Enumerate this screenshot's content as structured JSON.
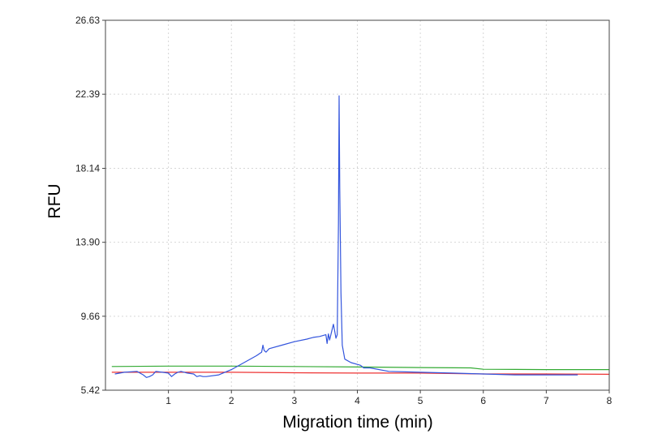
{
  "chart_data": {
    "type": "line",
    "xlabel": "Migration time (min)",
    "ylabel": "RFU",
    "xlim": [
      0,
      8
    ],
    "ylim": [
      5.42,
      26.63
    ],
    "x_ticks": [
      1,
      2,
      3,
      4,
      5,
      6,
      7,
      8
    ],
    "x_tick_labels": [
      "1",
      "2",
      "3",
      "4",
      "5",
      "6",
      "7",
      "8"
    ],
    "y_ticks": [
      5.42,
      9.66,
      13.9,
      18.14,
      22.39,
      26.63
    ],
    "y_tick_labels": [
      "5.42",
      "9.66",
      "13.90",
      "18.14",
      "22.39",
      "26.63"
    ],
    "grid": true,
    "series": [
      {
        "color": "#3355dd",
        "x": [
          0.15,
          0.3,
          0.5,
          0.6,
          0.65,
          0.7,
          0.75,
          0.8,
          0.9,
          1.0,
          1.05,
          1.1,
          1.15,
          1.2,
          1.3,
          1.4,
          1.45,
          1.5,
          1.55,
          1.6,
          1.8,
          2.0,
          2.2,
          2.4,
          2.48,
          2.5,
          2.52,
          2.55,
          2.6,
          2.8,
          3.0,
          3.2,
          3.3,
          3.4,
          3.5,
          3.52,
          3.54,
          3.56,
          3.6,
          3.62,
          3.64,
          3.66,
          3.68,
          3.7,
          3.71,
          3.72,
          3.74,
          3.76,
          3.8,
          3.9,
          4.0,
          4.05,
          4.1,
          4.2,
          4.5,
          5.0,
          5.5,
          6.0,
          6.5,
          7.0,
          7.5
        ],
        "y": [
          6.35,
          6.45,
          6.5,
          6.3,
          6.15,
          6.2,
          6.3,
          6.5,
          6.45,
          6.4,
          6.2,
          6.35,
          6.45,
          6.5,
          6.4,
          6.35,
          6.2,
          6.25,
          6.2,
          6.2,
          6.3,
          6.6,
          7.0,
          7.4,
          7.6,
          8.0,
          7.7,
          7.6,
          7.8,
          8.0,
          8.2,
          8.35,
          8.45,
          8.5,
          8.6,
          8.1,
          8.65,
          8.3,
          8.9,
          9.2,
          8.8,
          8.4,
          8.6,
          15.0,
          22.3,
          17.0,
          11.0,
          8.0,
          7.2,
          7.0,
          6.9,
          6.85,
          6.7,
          6.7,
          6.5,
          6.45,
          6.4,
          6.35,
          6.3,
          6.3,
          6.3
        ]
      },
      {
        "color": "#33aa33",
        "x": [
          0.1,
          1.0,
          2.0,
          3.0,
          4.0,
          5.0,
          5.8,
          6.0,
          7.0,
          8.0
        ],
        "y": [
          6.78,
          6.8,
          6.8,
          6.78,
          6.75,
          6.72,
          6.7,
          6.62,
          6.6,
          6.6
        ]
      },
      {
        "color": "#ee3333",
        "x": [
          0.1,
          1.0,
          2.0,
          3.0,
          4.0,
          5.0,
          6.0,
          7.0,
          8.0
        ],
        "y": [
          6.45,
          6.45,
          6.45,
          6.42,
          6.4,
          6.4,
          6.35,
          6.35,
          6.33
        ]
      }
    ]
  }
}
